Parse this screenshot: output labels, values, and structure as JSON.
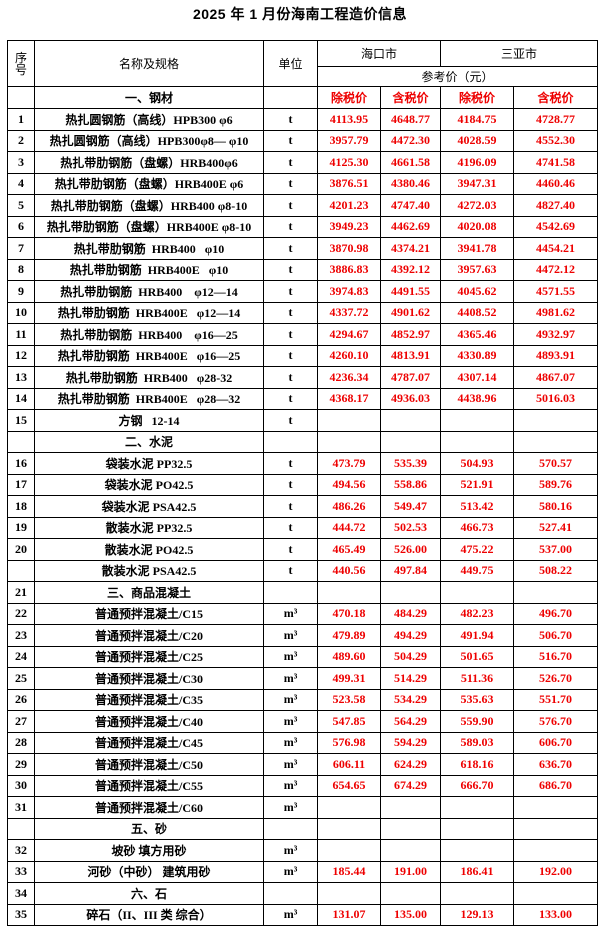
{
  "title": "2025 年 1 月份海南工程造价信息",
  "colors": {
    "price_red": "#ee0000",
    "text": "#000000",
    "border": "#000000",
    "background": "#ffffff"
  },
  "header": {
    "col_no": "序号",
    "col_name": "名称及规格",
    "col_unit": "单位",
    "city_1": "海口市",
    "city_2": "三亚市",
    "ref_price": "参考价（元）",
    "section_steel": "一、钢材",
    "price_excl": "除税价",
    "price_incl": "含税价"
  },
  "rows": [
    {
      "no": "1",
      "name": "热扎圆钢筋（高线）HPB300 φ6",
      "unit": "t",
      "v": [
        "4113.95",
        "4648.77",
        "4184.75",
        "4728.77"
      ]
    },
    {
      "no": "2",
      "name": "热扎圆钢筋（高线）HPB300φ8— φ10",
      "unit": "t",
      "v": [
        "3957.79",
        "4472.30",
        "4028.59",
        "4552.30"
      ]
    },
    {
      "no": "3",
      "name": "热扎带肋钢筋（盘螺）HRB400φ6",
      "unit": "t",
      "v": [
        "4125.30",
        "4661.58",
        "4196.09",
        "4741.58"
      ]
    },
    {
      "no": "4",
      "name": "热扎带肋钢筋（盘螺）HRB400E φ6",
      "unit": "t",
      "v": [
        "3876.51",
        "4380.46",
        "3947.31",
        "4460.46"
      ]
    },
    {
      "no": "5",
      "name": "热扎带肋钢筋（盘螺）HRB400 φ8-10",
      "unit": "t",
      "v": [
        "4201.23",
        "4747.40",
        "4272.03",
        "4827.40"
      ]
    },
    {
      "no": "6",
      "name": "热扎带肋钢筋（盘螺）HRB400E φ8-10",
      "unit": "t",
      "v": [
        "3949.23",
        "4462.69",
        "4020.08",
        "4542.69"
      ]
    },
    {
      "no": "7",
      "name": "热扎带肋钢筋  HRB400   φ10",
      "unit": "t",
      "v": [
        "3870.98",
        "4374.21",
        "3941.78",
        "4454.21"
      ]
    },
    {
      "no": "8",
      "name": "热扎带肋钢筋  HRB400E   φ10",
      "unit": "t",
      "v": [
        "3886.83",
        "4392.12",
        "3957.63",
        "4472.12"
      ]
    },
    {
      "no": "9",
      "name": "热扎带肋钢筋  HRB400    φ12—14",
      "unit": "t",
      "v": [
        "3974.83",
        "4491.55",
        "4045.62",
        "4571.55"
      ]
    },
    {
      "no": "10",
      "name": "热扎带肋钢筋  HRB400E   φ12—14",
      "unit": "t",
      "v": [
        "4337.72",
        "4901.62",
        "4408.52",
        "4981.62"
      ]
    },
    {
      "no": "11",
      "name": "热扎带肋钢筋  HRB400    φ16—25",
      "unit": "t",
      "v": [
        "4294.67",
        "4852.97",
        "4365.46",
        "4932.97"
      ]
    },
    {
      "no": "12",
      "name": "热扎带肋钢筋  HRB400E   φ16—25",
      "unit": "t",
      "v": [
        "4260.10",
        "4813.91",
        "4330.89",
        "4893.91"
      ]
    },
    {
      "no": "13",
      "name": "热扎带肋钢筋  HRB400   φ28-32",
      "unit": "t",
      "v": [
        "4236.34",
        "4787.07",
        "4307.14",
        "4867.07"
      ]
    },
    {
      "no": "14",
      "name": "热扎带肋钢筋  HRB400E   φ28—32",
      "unit": "t",
      "v": [
        "4368.17",
        "4936.03",
        "4438.96",
        "5016.03"
      ]
    },
    {
      "no": "15",
      "name": "方钢   12-14",
      "unit": "t",
      "v": [
        "",
        "",
        "",
        ""
      ]
    },
    {
      "no": "",
      "name": "二、水泥",
      "unit": "",
      "v": [
        "",
        "",
        "",
        ""
      ],
      "section": true
    },
    {
      "no": "16",
      "name": "袋装水泥 PP32.5",
      "unit": "t",
      "v": [
        "473.79",
        "535.39",
        "504.93",
        "570.57"
      ]
    },
    {
      "no": "17",
      "name": "袋装水泥 PO42.5",
      "unit": "t",
      "v": [
        "494.56",
        "558.86",
        "521.91",
        "589.76"
      ]
    },
    {
      "no": "18",
      "name": "袋装水泥 PSA42.5",
      "unit": "t",
      "v": [
        "486.26",
        "549.47",
        "513.42",
        "580.16"
      ]
    },
    {
      "no": "19",
      "name": "散装水泥 PP32.5",
      "unit": "t",
      "v": [
        "444.72",
        "502.53",
        "466.73",
        "527.41"
      ]
    },
    {
      "no": "20",
      "name": "散装水泥 PO42.5",
      "unit": "t",
      "v": [
        "465.49",
        "526.00",
        "475.22",
        "537.00"
      ]
    },
    {
      "no": "",
      "name": "散装水泥 PSA42.5",
      "unit": "t",
      "v": [
        "440.56",
        "497.84",
        "449.75",
        "508.22"
      ]
    },
    {
      "no": "21",
      "name": "三、商品混凝土",
      "unit": "",
      "v": [
        "",
        "",
        "",
        ""
      ],
      "section": true
    },
    {
      "no": "22",
      "name": "普通预拌混凝土/C15",
      "unit": "m³",
      "v": [
        "470.18",
        "484.29",
        "482.23",
        "496.70"
      ]
    },
    {
      "no": "23",
      "name": "普通预拌混凝土/C20",
      "unit": "m³",
      "v": [
        "479.89",
        "494.29",
        "491.94",
        "506.70"
      ]
    },
    {
      "no": "24",
      "name": "普通预拌混凝土/C25",
      "unit": "m³",
      "v": [
        "489.60",
        "504.29",
        "501.65",
        "516.70"
      ]
    },
    {
      "no": "25",
      "name": "普通预拌混凝土/C30",
      "unit": "m³",
      "v": [
        "499.31",
        "514.29",
        "511.36",
        "526.70"
      ]
    },
    {
      "no": "26",
      "name": "普通预拌混凝土/C35",
      "unit": "m³",
      "v": [
        "523.58",
        "534.29",
        "535.63",
        "551.70"
      ]
    },
    {
      "no": "27",
      "name": "普通预拌混凝土/C40",
      "unit": "m³",
      "v": [
        "547.85",
        "564.29",
        "559.90",
        "576.70"
      ]
    },
    {
      "no": "28",
      "name": "普通预拌混凝土/C45",
      "unit": "m³",
      "v": [
        "576.98",
        "594.29",
        "589.03",
        "606.70"
      ]
    },
    {
      "no": "29",
      "name": "普通预拌混凝土/C50",
      "unit": "m³",
      "v": [
        "606.11",
        "624.29",
        "618.16",
        "636.70"
      ]
    },
    {
      "no": "30",
      "name": "普通预拌混凝土/C55",
      "unit": "m³",
      "v": [
        "654.65",
        "674.29",
        "666.70",
        "686.70"
      ]
    },
    {
      "no": "31",
      "name": "普通预拌混凝土/C60",
      "unit": "m³",
      "v": [
        "",
        "",
        "",
        ""
      ]
    },
    {
      "no": "",
      "name": "五、砂",
      "unit": "",
      "v": [
        "",
        "",
        "",
        ""
      ],
      "section": true
    },
    {
      "no": "32",
      "name": "坡砂 填方用砂",
      "unit": "m³",
      "v": [
        "",
        "",
        "",
        ""
      ]
    },
    {
      "no": "33",
      "name": "河砂（中砂） 建筑用砂",
      "unit": "m³",
      "v": [
        "185.44",
        "191.00",
        "186.41",
        "192.00"
      ]
    },
    {
      "no": "34",
      "name": "六、石",
      "unit": "",
      "v": [
        "",
        "",
        "",
        ""
      ],
      "section": true
    },
    {
      "no": "35",
      "name": "碎石（II、III 类 综合）",
      "unit": "m³",
      "v": [
        "131.07",
        "135.00",
        "129.13",
        "133.00"
      ]
    }
  ]
}
